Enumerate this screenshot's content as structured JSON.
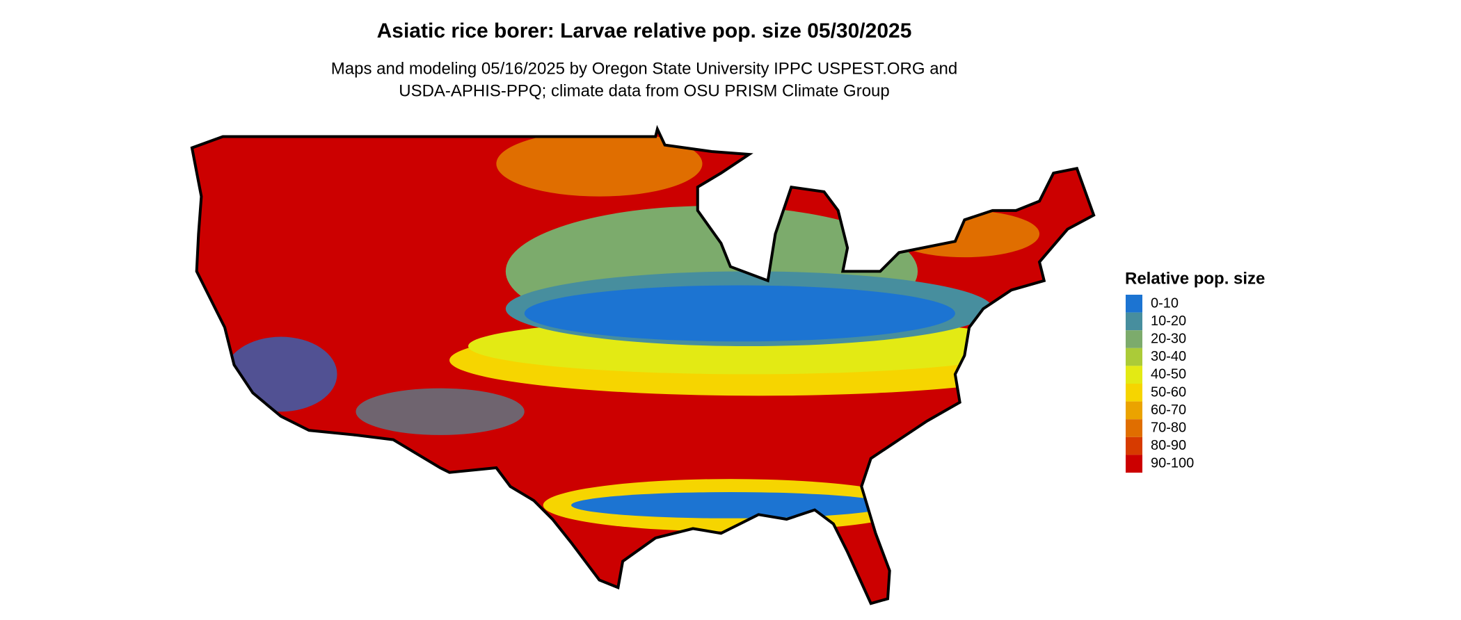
{
  "title": "Asiatic rice borer: Larvae relative pop. size 05/30/2025",
  "subtitle": [
    "Maps and modeling 05/16/2025 by Oregon State University IPPC USPEST.ORG and",
    "USDA-APHIS-PPQ; climate data from OSU PRISM Climate Group"
  ],
  "legend": {
    "title": "Relative pop. size",
    "items": [
      {
        "label": "0-10",
        "color": "#1c74d2"
      },
      {
        "label": "10-20",
        "color": "#478e9e"
      },
      {
        "label": "20-30",
        "color": "#7cab6c"
      },
      {
        "label": "30-40",
        "color": "#abcb38"
      },
      {
        "label": "40-50",
        "color": "#e3ea14"
      },
      {
        "label": "50-60",
        "color": "#f6d500"
      },
      {
        "label": "60-70",
        "color": "#eba300"
      },
      {
        "label": "70-80",
        "color": "#e06e00"
      },
      {
        "label": "80-90",
        "color": "#d73b00"
      },
      {
        "label": "90-100",
        "color": "#cc0000"
      }
    ]
  }
}
